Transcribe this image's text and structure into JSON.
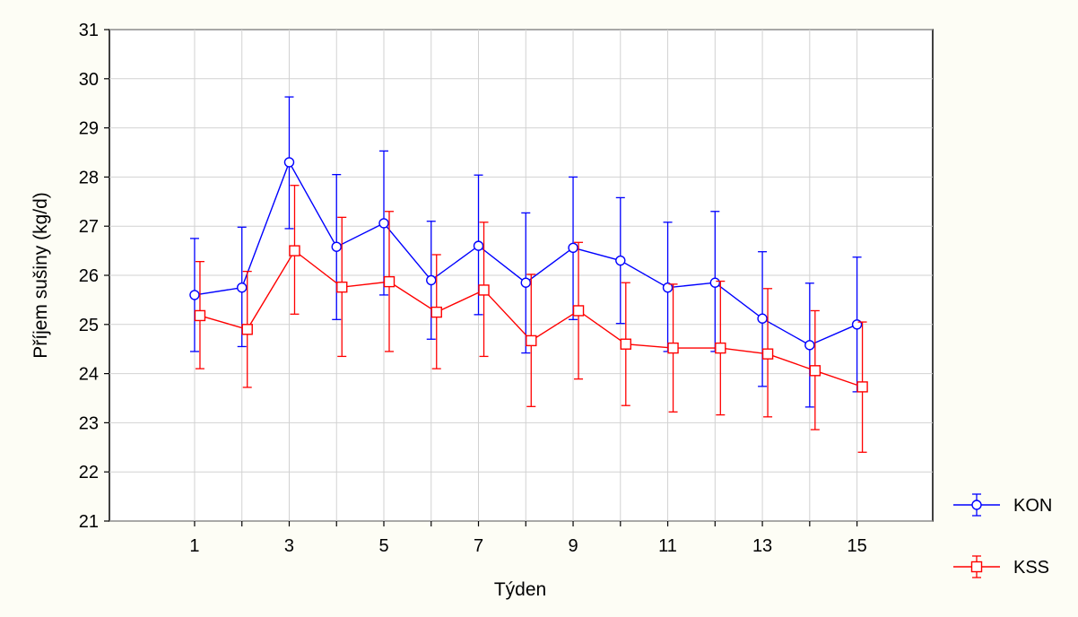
{
  "chart_data": {
    "type": "line",
    "xlabel": "Týden",
    "ylabel": "Příjem sušiny (kg/d)",
    "x": [
      1,
      2,
      3,
      4,
      5,
      6,
      7,
      8,
      9,
      10,
      11,
      12,
      13,
      14,
      15
    ],
    "x_ticks": [
      1,
      3,
      5,
      7,
      9,
      11,
      13,
      15
    ],
    "xlim": [
      -0.8,
      16.6
    ],
    "ylim": [
      21,
      31
    ],
    "y_ticks": [
      21,
      22,
      23,
      24,
      25,
      26,
      27,
      28,
      29,
      30,
      31
    ],
    "grid": true,
    "legend_position": "bottom-right",
    "series": [
      {
        "name": "KON",
        "color": "#0000ff",
        "marker": "circle",
        "values": [
          25.6,
          25.75,
          28.3,
          26.58,
          27.06,
          25.9,
          26.6,
          25.85,
          26.56,
          26.3,
          25.75,
          25.85,
          25.12,
          24.58,
          25.0
        ],
        "err_low": [
          24.45,
          24.55,
          26.95,
          25.1,
          25.6,
          24.7,
          25.2,
          24.42,
          25.1,
          25.02,
          24.45,
          24.45,
          23.74,
          23.32,
          23.63
        ],
        "err_high": [
          26.75,
          26.98,
          29.63,
          28.05,
          28.53,
          27.1,
          28.04,
          27.27,
          28.0,
          27.58,
          27.08,
          27.3,
          26.48,
          25.84,
          26.37
        ]
      },
      {
        "name": "KSS",
        "color": "#ff0000",
        "marker": "square",
        "values": [
          25.18,
          24.9,
          26.5,
          25.76,
          25.87,
          25.25,
          25.7,
          24.67,
          25.28,
          24.6,
          24.52,
          24.52,
          24.4,
          24.06,
          23.73
        ],
        "err_low": [
          24.1,
          23.72,
          25.21,
          24.35,
          24.45,
          24.1,
          24.35,
          23.33,
          23.89,
          23.35,
          23.22,
          23.16,
          23.12,
          22.86,
          22.4
        ],
        "err_high": [
          26.28,
          26.08,
          27.83,
          27.18,
          27.3,
          26.42,
          27.08,
          26.02,
          26.67,
          25.85,
          25.82,
          25.88,
          25.73,
          25.28,
          25.05
        ]
      }
    ]
  }
}
